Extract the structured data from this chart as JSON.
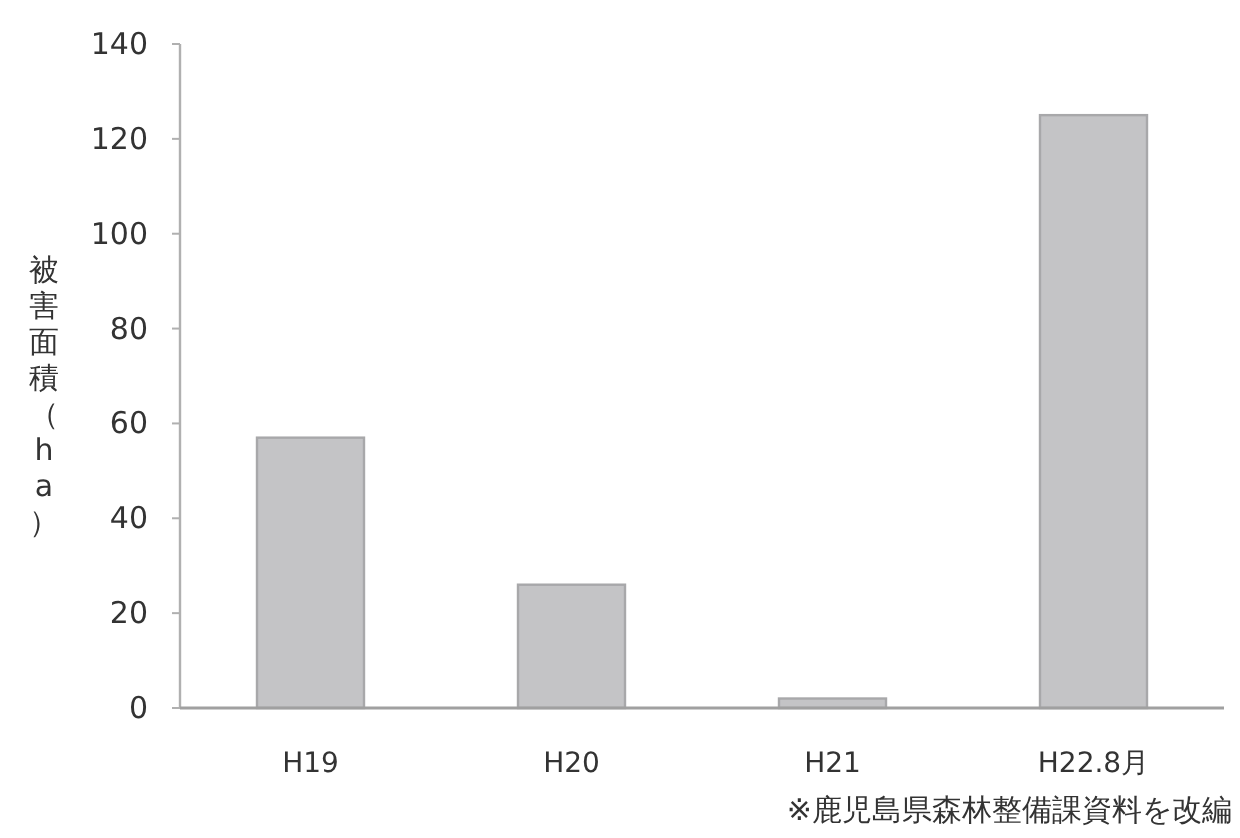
{
  "chart_data": {
    "type": "bar",
    "ylabel": "被害面積（ha）",
    "categories": [
      "H19",
      "H20",
      "H21",
      "H22.8月"
    ],
    "values": [
      57,
      26,
      2,
      125
    ],
    "color": "#c4c4c6",
    "ylim": [
      0,
      140
    ],
    "yticks": [
      0,
      20,
      40,
      60,
      80,
      100,
      120,
      140
    ],
    "annotations": [
      "※鹿児島県森林整備課資料を改編"
    ]
  }
}
